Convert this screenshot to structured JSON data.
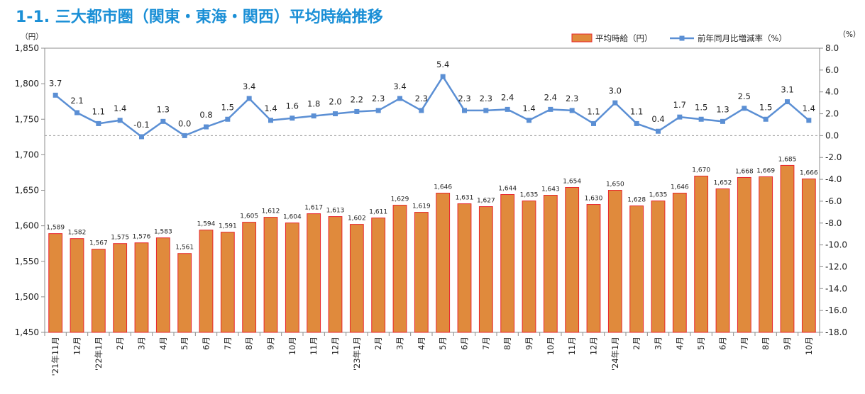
{
  "page": {
    "title": "1-1. 三大都市圏（関東・東海・関西）平均時給推移"
  },
  "chart_data": {
    "type": "bar",
    "categories": [
      "'21年11月",
      "12月",
      "'22年1月",
      "2月",
      "3月",
      "4月",
      "5月",
      "6月",
      "7月",
      "8月",
      "9月",
      "10月",
      "11月",
      "12月",
      "'23年1月",
      "2月",
      "3月",
      "4月",
      "5月",
      "6月",
      "7月",
      "8月",
      "9月",
      "10月",
      "11月",
      "12月",
      "'24年1月",
      "2月",
      "3月",
      "4月",
      "5月",
      "6月",
      "7月",
      "8月",
      "9月",
      "10月"
    ],
    "y_unit": "（円）",
    "y2_unit": "（%）",
    "ylim": [
      1450,
      1850
    ],
    "y_ticks": [
      "1,450",
      "1,500",
      "1,550",
      "1,600",
      "1,650",
      "1,700",
      "1,750",
      "1,800",
      "1,850"
    ],
    "y2lim": [
      -18,
      8
    ],
    "y2_ticks": [
      "-18.0",
      "-16.0",
      "-14.0",
      "-12.0",
      "-10.0",
      "-8.0",
      "-6.0",
      "-4.0",
      "-2.0",
      "0.0",
      "2.0",
      "4.0",
      "6.0",
      "8.0"
    ],
    "legend_position": "top-right",
    "series": [
      {
        "name": "平均時給（円）",
        "type": "bar",
        "axis": "left",
        "color": "#e08a3c",
        "edge_color": "#e8262d",
        "values": [
          1589,
          1582,
          1567,
          1575,
          1576,
          1583,
          1561,
          1594,
          1591,
          1605,
          1612,
          1604,
          1617,
          1613,
          1602,
          1611,
          1629,
          1619,
          1646,
          1631,
          1627,
          1644,
          1635,
          1643,
          1654,
          1630,
          1650,
          1628,
          1635,
          1646,
          1670,
          1652,
          1668,
          1669,
          1685,
          1666
        ],
        "labels": [
          "1,589",
          "1,582",
          "1,567",
          "1,575",
          "1,576",
          "1,583",
          "1,561",
          "1,594",
          "1,591",
          "1,605",
          "1,612",
          "1,604",
          "1,617",
          "1,613",
          "1,602",
          "1,611",
          "1,629",
          "1,619",
          "1,646",
          "1,631",
          "1,627",
          "1,644",
          "1,635",
          "1,643",
          "1,654",
          "1,630",
          "1,650",
          "1,628",
          "1,635",
          "1,646",
          "1,670",
          "1,652",
          "1,668",
          "1,669",
          "1,685",
          "1,666"
        ]
      },
      {
        "name": "前年同月比増減率（%）",
        "type": "line",
        "axis": "right",
        "color": "#5b8fd4",
        "values": [
          3.7,
          2.1,
          1.1,
          1.4,
          -0.1,
          1.3,
          0.0,
          0.8,
          1.5,
          3.4,
          1.4,
          1.6,
          1.8,
          2.0,
          2.2,
          2.3,
          3.4,
          2.3,
          5.4,
          2.3,
          2.3,
          2.4,
          1.4,
          2.4,
          2.3,
          1.1,
          3.0,
          1.1,
          0.4,
          1.7,
          1.5,
          1.3,
          2.5,
          1.5,
          3.1,
          1.4
        ],
        "labels": [
          "3.7",
          "2.1",
          "1.1",
          "1.4",
          "-0.1",
          "1.3",
          "0.0",
          "0.8",
          "1.5",
          "3.4",
          "1.4",
          "1.6",
          "1.8",
          "2.0",
          "2.2",
          "2.3",
          "3.4",
          "2.3",
          "5.4",
          "2.3",
          "2.3",
          "2.4",
          "1.4",
          "2.4",
          "2.3",
          "1.1",
          "3.0",
          "1.1",
          "0.4",
          "1.7",
          "1.5",
          "1.3",
          "2.5",
          "1.5",
          "3.1",
          "1.4"
        ]
      }
    ]
  }
}
